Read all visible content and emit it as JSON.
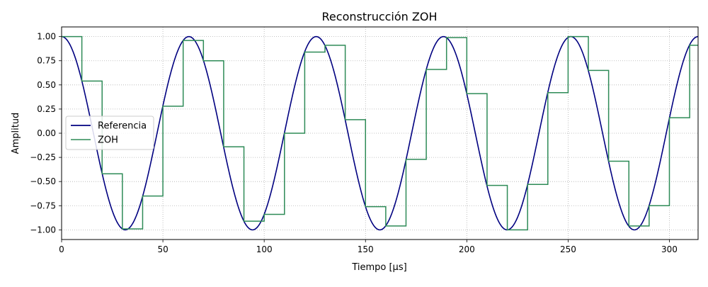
{
  "chart_data": {
    "type": "line",
    "title": "Reconstrucción ZOH",
    "xlabel": "Tiempo [μs]",
    "ylabel": "Amplitud",
    "xlim": [
      0,
      314.16
    ],
    "ylim": [
      -1.1,
      1.1
    ],
    "grid": true,
    "grid_style": "dotted",
    "legend_position": "center-left",
    "x_ticks": [
      0,
      50,
      100,
      150,
      200,
      250,
      300
    ],
    "x_tick_labels": [
      "0",
      "50",
      "100",
      "150",
      "200",
      "250",
      "300"
    ],
    "y_ticks": [
      1.0,
      0.75,
      0.5,
      0.25,
      0.0,
      -0.25,
      -0.5,
      -0.75,
      -1.0
    ],
    "y_tick_labels": [
      "1.00",
      "0.75",
      "0.50",
      "0.25",
      "0.00",
      "−0.25",
      "−0.50",
      "−0.75",
      "−1.00"
    ],
    "series": [
      {
        "name": "Referencia",
        "color": "#000080",
        "kind": "cosine",
        "amplitude": 1.0,
        "period": 62.83,
        "x_range": [
          0,
          314.16
        ]
      },
      {
        "name": "ZOH",
        "color": "#2e8b57",
        "kind": "step",
        "x": [
          0,
          10,
          20,
          30,
          40,
          50,
          60,
          70,
          80,
          90,
          100,
          110,
          120,
          130,
          140,
          150,
          160,
          170,
          180,
          190,
          200,
          210,
          220,
          230,
          240,
          250,
          260,
          270,
          280,
          290,
          300,
          310
        ],
        "y": [
          1.0,
          0.54,
          -0.42,
          -0.99,
          -0.65,
          0.28,
          0.96,
          0.75,
          -0.14,
          -0.91,
          -0.84,
          0.0,
          0.84,
          0.91,
          0.14,
          -0.76,
          -0.96,
          -0.27,
          0.66,
          0.99,
          0.41,
          -0.54,
          -1.0,
          -0.53,
          0.42,
          1.0,
          0.65,
          -0.29,
          -0.96,
          -0.75,
          0.16,
          0.91
        ]
      }
    ]
  }
}
